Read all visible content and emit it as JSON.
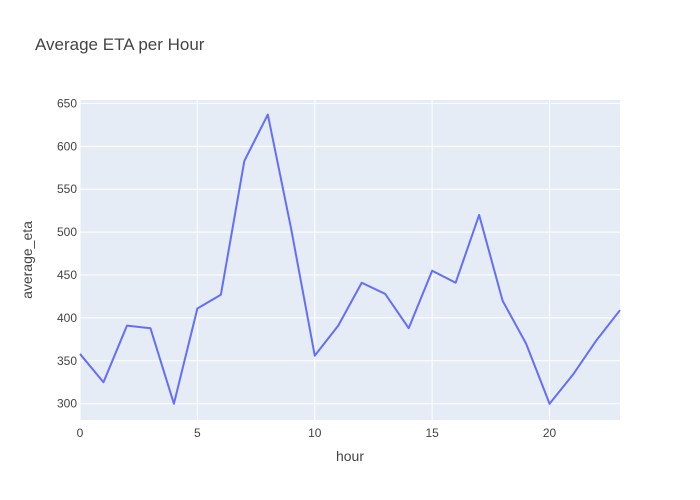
{
  "chart_data": {
    "type": "line",
    "title": "Average ETA per Hour",
    "xlabel": "hour",
    "ylabel": "average_eta",
    "xlim": [
      0,
      23
    ],
    "ylim": [
      281,
      654
    ],
    "xticks": [
      0,
      5,
      10,
      15,
      20
    ],
    "yticks": [
      300,
      350,
      400,
      450,
      500,
      550,
      600,
      650
    ],
    "grid": true,
    "legend": "none",
    "colors": {
      "line": "#636efa",
      "plot_bg": "#e5ecf6",
      "text": "#444444"
    },
    "series": [
      {
        "x": [
          0,
          1,
          2,
          3,
          4,
          5,
          6,
          7,
          8,
          9,
          10,
          11,
          12,
          13,
          14,
          15,
          16,
          17,
          18,
          19,
          20,
          21,
          22,
          23
        ],
        "values": [
          358,
          325,
          391,
          388,
          300,
          411,
          427,
          583,
          637,
          503,
          356,
          391,
          441,
          428,
          388,
          455,
          441,
          520,
          420,
          370,
          300,
          334,
          374,
          409
        ]
      }
    ]
  }
}
